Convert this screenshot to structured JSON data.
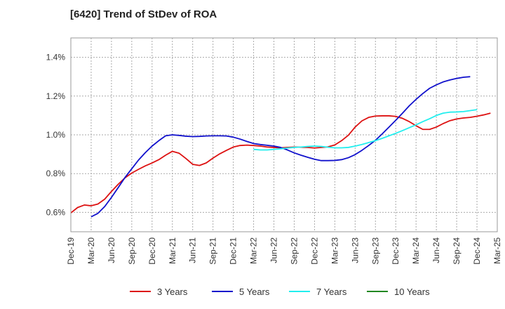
{
  "chart_data": {
    "type": "line",
    "title": "[6420]  Trend of StDev of ROA",
    "xlabel": "",
    "ylabel": "",
    "ylim": [
      0.005,
      0.015
    ],
    "y_ticks": [
      0.006,
      0.008,
      0.01,
      0.012,
      0.014
    ],
    "y_tick_labels": [
      "0.6%",
      "0.8%",
      "1.0%",
      "1.2%",
      "1.4%"
    ],
    "x_tick_labels": [
      "Dec-19",
      "Mar-20",
      "Jun-20",
      "Sep-20",
      "Dec-20",
      "Mar-21",
      "Jun-21",
      "Sep-21",
      "Dec-21",
      "Mar-22",
      "Jun-22",
      "Sep-22",
      "Dec-22",
      "Mar-23",
      "Jun-23",
      "Sep-23",
      "Dec-23",
      "Mar-24",
      "Jun-24",
      "Sep-24",
      "Dec-24",
      "Mar-25"
    ],
    "grid": true,
    "legend_position": "bottom",
    "series": [
      {
        "name": "3 Years",
        "color": "#dd1111",
        "start_index": 0,
        "values": [
          0.00597,
          0.00625,
          0.00638,
          0.00634,
          0.00643,
          0.00668,
          0.00708,
          0.00745,
          0.00778,
          0.00803,
          0.00822,
          0.0084,
          0.00855,
          0.00872,
          0.00895,
          0.00915,
          0.00905,
          0.00878,
          0.00848,
          0.00842,
          0.00855,
          0.0088,
          0.00902,
          0.0092,
          0.00937,
          0.00945,
          0.00947,
          0.00945,
          0.00942,
          0.00937,
          0.00935,
          0.00933,
          0.00935,
          0.00937,
          0.00936,
          0.00935,
          0.00932,
          0.00935,
          0.00938,
          0.00948,
          0.0097,
          0.00998,
          0.0104,
          0.01072,
          0.0109,
          0.01097,
          0.01098,
          0.01098,
          0.01095,
          0.01085,
          0.01068,
          0.01047,
          0.01028,
          0.01028,
          0.0104,
          0.01058,
          0.01073,
          0.01082,
          0.01087,
          0.0109,
          0.01096,
          0.01103,
          0.01112
        ]
      },
      {
        "name": "5 Years",
        "color": "#1111cc",
        "start_index": 3,
        "values": [
          0.00577,
          0.00595,
          0.0063,
          0.00677,
          0.00728,
          0.0078,
          0.00825,
          0.0087,
          0.00908,
          0.00942,
          0.0097,
          0.00995,
          0.01,
          0.00997,
          0.00993,
          0.00991,
          0.00992,
          0.00994,
          0.00995,
          0.00995,
          0.00994,
          0.00988,
          0.00978,
          0.00966,
          0.00955,
          0.0095,
          0.00946,
          0.00942,
          0.00935,
          0.00922,
          0.00907,
          0.00895,
          0.00884,
          0.00874,
          0.00867,
          0.00867,
          0.00868,
          0.00872,
          0.00882,
          0.00898,
          0.0092,
          0.00945,
          0.00972,
          0.01005,
          0.0104,
          0.01075,
          0.01112,
          0.0115,
          0.01183,
          0.01213,
          0.0124,
          0.01258,
          0.01273,
          0.01283,
          0.01291,
          0.01297,
          0.013
        ]
      },
      {
        "name": "7 Years",
        "color": "#22eeee",
        "start_index": 27,
        "values": [
          0.00925,
          0.00922,
          0.00922,
          0.00925,
          0.00928,
          0.00932,
          0.00935,
          0.00937,
          0.0094,
          0.00942,
          0.0094,
          0.00936,
          0.00933,
          0.00933,
          0.00935,
          0.00942,
          0.0095,
          0.0096,
          0.0097,
          0.00982,
          0.00995,
          0.01008,
          0.01022,
          0.01037,
          0.01052,
          0.01068,
          0.01083,
          0.011,
          0.01112,
          0.01117,
          0.01118,
          0.0112,
          0.01125,
          0.0113
        ]
      },
      {
        "name": "10 Years",
        "color": "#228822",
        "start_index": 0,
        "values": []
      }
    ]
  }
}
